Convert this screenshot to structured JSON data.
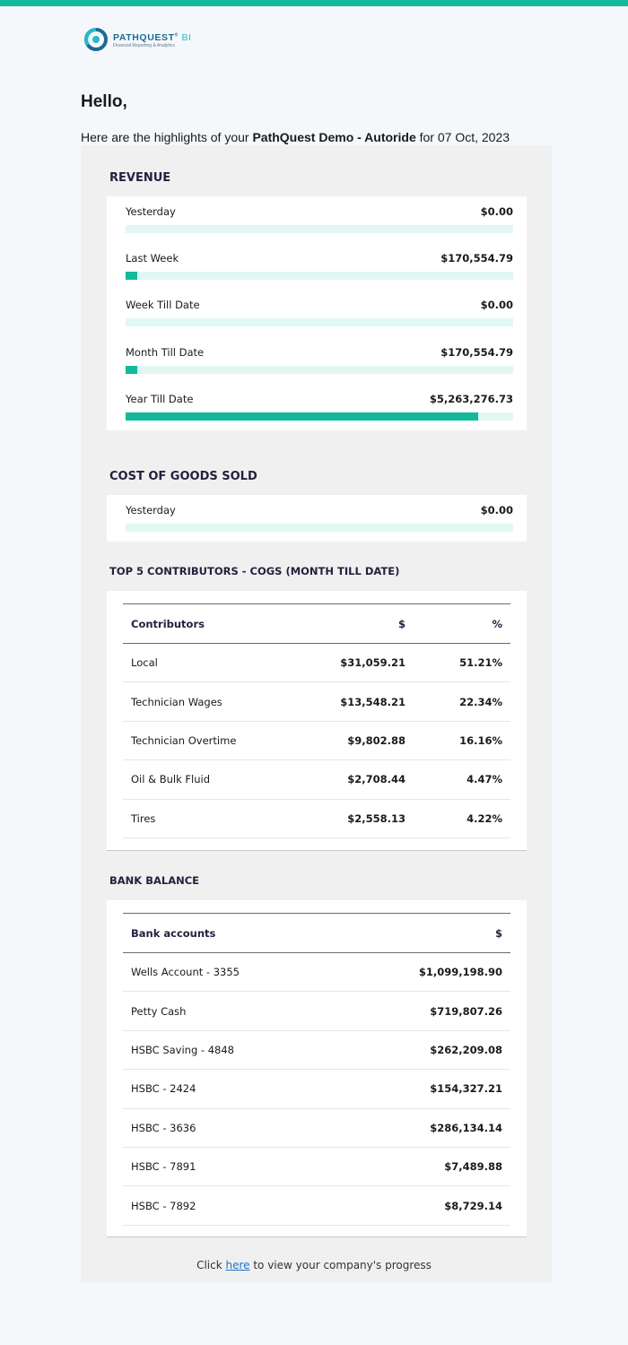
{
  "brand": {
    "name_main": "PATHQUEST",
    "name_suffix": "BI",
    "trademark": "®",
    "tagline": "Financial Reporting & Analytics",
    "accent_color": "#13b99b"
  },
  "greeting": "Hello,",
  "intro": {
    "prefix": "Here are the highlights of your ",
    "company": "PathQuest Demo - Autoride",
    "suffix": " for 07 Oct, 2023"
  },
  "revenue": {
    "title": "REVENUE",
    "rows": [
      {
        "label": "Yesterday",
        "value": "$0.00",
        "fraction": 0
      },
      {
        "label": "Last Week",
        "value": "$170,554.79",
        "fraction": 0.03
      },
      {
        "label": "Week Till Date",
        "value": "$0.00",
        "fraction": 0
      },
      {
        "label": "Month Till Date",
        "value": "$170,554.79",
        "fraction": 0.03
      },
      {
        "label": "Year Till Date",
        "value": "$5,263,276.73",
        "fraction": 0.91
      }
    ]
  },
  "cogs": {
    "title": "COST OF GOODS SOLD",
    "rows": [
      {
        "label": "Yesterday",
        "value": "$0.00",
        "fraction": 0
      }
    ]
  },
  "contributors": {
    "title": "TOP 5 CONTRIBUTORS - COGS (MONTH TILL DATE)",
    "headers": [
      "Contributors",
      "$",
      "%"
    ],
    "rows": [
      [
        "Local",
        "$31,059.21",
        "51.21%"
      ],
      [
        "Technician Wages",
        "$13,548.21",
        "22.34%"
      ],
      [
        "Technician Overtime",
        "$9,802.88",
        "16.16%"
      ],
      [
        "Oil & Bulk Fluid",
        "$2,708.44",
        "4.47%"
      ],
      [
        "Tires",
        "$2,558.13",
        "4.22%"
      ]
    ]
  },
  "bank": {
    "title": "BANK BALANCE",
    "headers": [
      "Bank accounts",
      "$"
    ],
    "rows": [
      [
        "Wells Account - 3355",
        "$1,099,198.90"
      ],
      [
        "Petty Cash",
        "$719,807.26"
      ],
      [
        "HSBC Saving - 4848",
        "$262,209.08"
      ],
      [
        "HSBC - 2424",
        "$154,327.21"
      ],
      [
        "HSBC - 3636",
        "$286,134.14"
      ],
      [
        "HSBC - 7891",
        "$7,489.88"
      ],
      [
        "HSBC - 7892",
        "$8,729.14"
      ]
    ]
  },
  "footer": {
    "prefix": "Click ",
    "link": "here",
    "suffix": " to view your company's progress"
  }
}
